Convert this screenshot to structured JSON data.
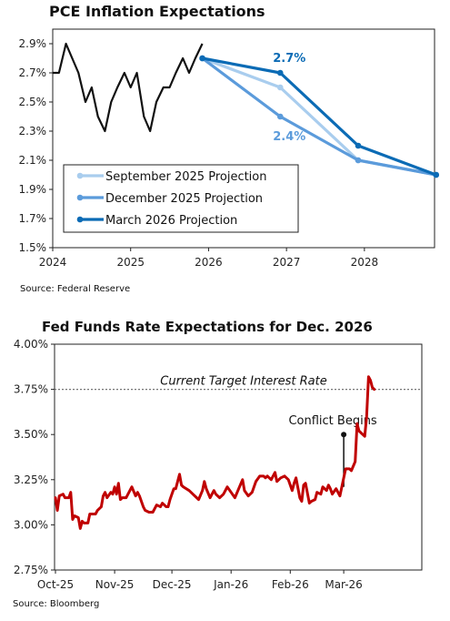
{
  "chart_data": [
    {
      "type": "line",
      "title": "PCE Inflation Expectations",
      "source": "Source: Federal Reserve",
      "xlabel": "",
      "ylabel": "",
      "xlim": [
        2024.0,
        2028.9
      ],
      "ylim": [
        1.5,
        3.0
      ],
      "x_ticks": [
        2024,
        2025,
        2026,
        2027,
        2028
      ],
      "x_tick_labels": [
        "2024",
        "2025",
        "2026",
        "2027",
        "2028"
      ],
      "y_ticks": [
        1.5,
        1.7,
        1.9,
        2.1,
        2.3,
        2.5,
        2.7,
        2.9
      ],
      "y_tick_labels": [
        "1.5%",
        "1.7%",
        "1.9%",
        "2.1%",
        "2.3%",
        "2.5%",
        "2.7%",
        "2.9%"
      ],
      "grid": false,
      "legend_position": "bottom-left",
      "history": {
        "color": "#111111",
        "x": [
          2024.0,
          2024.08,
          2024.17,
          2024.25,
          2024.33,
          2024.42,
          2024.5,
          2024.58,
          2024.67,
          2024.75,
          2024.83,
          2024.92,
          2025.0,
          2025.08,
          2025.17,
          2025.25,
          2025.33,
          2025.42,
          2025.5,
          2025.58,
          2025.67,
          2025.75,
          2025.83,
          2025.92
        ],
        "y": [
          2.7,
          2.7,
          2.9,
          2.8,
          2.7,
          2.5,
          2.6,
          2.4,
          2.3,
          2.5,
          2.6,
          2.7,
          2.6,
          2.7,
          2.4,
          2.3,
          2.5,
          2.6,
          2.6,
          2.7,
          2.8,
          2.7,
          2.8,
          2.9
        ]
      },
      "series": [
        {
          "name": "September 2025 Projection",
          "color": "#a9cdee",
          "x": [
            2025.92,
            2026.92,
            2027.92,
            2028.92
          ],
          "y": [
            2.8,
            2.6,
            2.1,
            2.0
          ]
        },
        {
          "name": "December 2025 Projection",
          "color": "#5b9bdb",
          "x": [
            2025.92,
            2026.92,
            2027.92,
            2028.92
          ],
          "y": [
            2.8,
            2.4,
            2.1,
            2.0
          ]
        },
        {
          "name": "March 2026 Projection",
          "color": "#0b6bb5",
          "x": [
            2025.92,
            2026.92,
            2027.92,
            2028.92
          ],
          "y": [
            2.8,
            2.7,
            2.2,
            2.0
          ]
        }
      ],
      "annotations": [
        {
          "text": "2.7%",
          "x": 2026.92,
          "y": 2.7,
          "color": "#0b6bb5",
          "bold": true,
          "placement": "above"
        },
        {
          "text": "2.4%",
          "x": 2026.92,
          "y": 2.4,
          "color": "#5b9bdb",
          "bold": true,
          "placement": "below"
        }
      ]
    },
    {
      "type": "line",
      "title": "Fed Funds Rate Expectations for Dec. 2026",
      "source": "Source: Bloomberg",
      "xlabel": "",
      "ylabel": "",
      "xlim": [
        0,
        163
      ],
      "ylim": [
        2.75,
        4.0
      ],
      "x_ticks": [
        0,
        31,
        61,
        92,
        123,
        151
      ],
      "x_tick_labels": [
        "Oct-25",
        "Nov-25",
        "Dec-25",
        "Jan-26",
        "Feb-26",
        "Mar-26"
      ],
      "y_ticks": [
        2.75,
        3.0,
        3.25,
        3.5,
        3.75,
        4.0
      ],
      "y_tick_labels": [
        "2.75%",
        "3.00%",
        "3.25%",
        "3.50%",
        "3.75%",
        "4.00%"
      ],
      "grid": false,
      "reference_line": {
        "y": 3.75,
        "label": "Current Target Interest Rate",
        "color": "#777777"
      },
      "event": {
        "x": 151,
        "y_from": 3.21,
        "y_to": 3.5,
        "label": "Conflict Begins"
      },
      "series": [
        {
          "name": "Fed Funds Rate Expectations",
          "color": "#c00000",
          "x": [
            0,
            1,
            2,
            4,
            5,
            7,
            8,
            9,
            10,
            12,
            13,
            14,
            15,
            17,
            18,
            20,
            21,
            22,
            24,
            25,
            26,
            27,
            29,
            30,
            31,
            32,
            33,
            34,
            35,
            37,
            39,
            40,
            42,
            43,
            44,
            46,
            47,
            49,
            51,
            53,
            55,
            56,
            57,
            58,
            59,
            60,
            61,
            62,
            63,
            65,
            66,
            67,
            70,
            72,
            75,
            77,
            78,
            79,
            81,
            83,
            84,
            86,
            88,
            90,
            92,
            94,
            96,
            98,
            99,
            101,
            103,
            105,
            107,
            109,
            110,
            111,
            113,
            115,
            116,
            118,
            120,
            122,
            124,
            125,
            126,
            128,
            129,
            130,
            131,
            133,
            134,
            136,
            137,
            139,
            140,
            142,
            143,
            144,
            145,
            147,
            149,
            150,
            151,
            152,
            154,
            155,
            157,
            158,
            159,
            161,
            162,
            163,
            164,
            165,
            166,
            167
          ],
          "y": [
            3.15,
            3.08,
            3.16,
            3.17,
            3.15,
            3.15,
            3.18,
            3.03,
            3.05,
            3.04,
            2.98,
            3.02,
            3.01,
            3.01,
            3.06,
            3.06,
            3.06,
            3.08,
            3.1,
            3.16,
            3.18,
            3.15,
            3.18,
            3.17,
            3.21,
            3.17,
            3.23,
            3.14,
            3.15,
            3.15,
            3.19,
            3.21,
            3.16,
            3.18,
            3.16,
            3.1,
            3.08,
            3.07,
            3.07,
            3.11,
            3.1,
            3.12,
            3.11,
            3.1,
            3.1,
            3.14,
            3.17,
            3.2,
            3.2,
            3.28,
            3.22,
            3.21,
            3.19,
            3.17,
            3.14,
            3.19,
            3.24,
            3.2,
            3.15,
            3.19,
            3.17,
            3.15,
            3.17,
            3.21,
            3.18,
            3.15,
            3.2,
            3.25,
            3.19,
            3.16,
            3.18,
            3.24,
            3.27,
            3.27,
            3.26,
            3.27,
            3.25,
            3.29,
            3.24,
            3.26,
            3.27,
            3.25,
            3.19,
            3.23,
            3.26,
            3.15,
            3.13,
            3.22,
            3.23,
            3.12,
            3.13,
            3.14,
            3.18,
            3.17,
            3.21,
            3.19,
            3.22,
            3.2,
            3.17,
            3.2,
            3.16,
            3.21,
            3.26,
            3.31,
            3.31,
            3.3,
            3.35,
            3.56,
            3.52,
            3.5,
            3.49,
            3.6,
            3.82,
            3.8,
            3.76,
            3.75
          ]
        }
      ]
    }
  ]
}
